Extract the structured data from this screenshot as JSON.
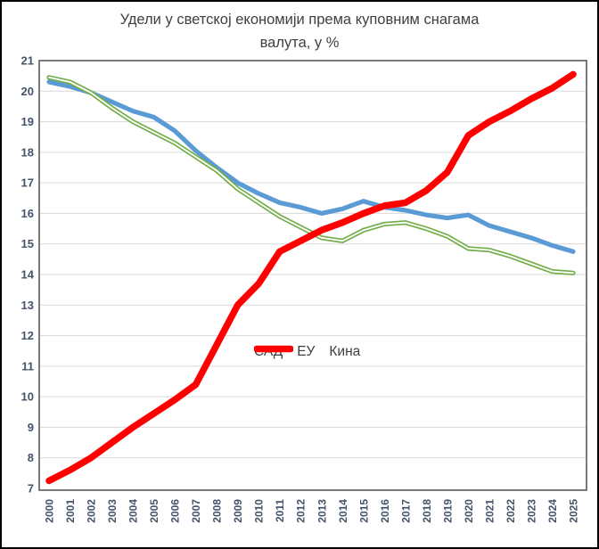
{
  "title": {
    "line1": "Удели у светској економији према куповним снагама",
    "line2": "валута, у %"
  },
  "chart_data": {
    "type": "line",
    "title": "Удели у светској економији према куповним снагама валута, у %",
    "categories": [
      2000,
      2001,
      2002,
      2003,
      2004,
      2005,
      2006,
      2007,
      2008,
      2009,
      2010,
      2011,
      2012,
      2013,
      2014,
      2015,
      2016,
      2017,
      2018,
      2019,
      2020,
      2021,
      2022,
      2023,
      2024,
      2025
    ],
    "series": [
      {
        "name": "САД",
        "slug": "usa",
        "color": "#5B9BD5",
        "line_style": "solid",
        "values": [
          20.3,
          20.15,
          19.95,
          19.65,
          19.35,
          19.15,
          18.7,
          18.05,
          17.5,
          17.0,
          16.65,
          16.35,
          16.2,
          16.0,
          16.15,
          16.4,
          16.2,
          16.1,
          15.95,
          15.85,
          15.95,
          15.6,
          15.4,
          15.2,
          14.95,
          14.75
        ]
      },
      {
        "name": "ЕУ",
        "slug": "eu",
        "color": "#70AD47",
        "line_style": "double",
        "values": [
          20.45,
          20.3,
          19.95,
          19.45,
          19.0,
          18.65,
          18.3,
          17.85,
          17.4,
          16.8,
          16.35,
          15.9,
          15.55,
          15.2,
          15.1,
          15.45,
          15.65,
          15.7,
          15.5,
          15.25,
          14.85,
          14.8,
          14.6,
          14.35,
          14.1,
          14.05
        ]
      },
      {
        "name": "Кина",
        "slug": "china",
        "color": "#FF0000",
        "line_style": "thick",
        "values": [
          7.25,
          7.6,
          8.0,
          8.5,
          9.0,
          9.45,
          9.9,
          10.4,
          11.7,
          13.0,
          13.7,
          14.75,
          15.1,
          15.45,
          15.7,
          16.0,
          16.25,
          16.35,
          16.75,
          17.35,
          18.55,
          19.0,
          19.35,
          19.75,
          20.1,
          20.55
        ]
      }
    ],
    "ylim": [
      7,
      21
    ],
    "y_ticks": [
      21,
      20,
      19,
      18,
      17,
      16,
      15,
      14,
      13,
      12,
      11,
      10,
      9,
      8,
      7
    ],
    "grid": true,
    "legend_position": "inside-plot-center",
    "grid_color": "#D9D9D9",
    "axis_tick_color": "#44546A",
    "plot_border_color": "#595959"
  }
}
